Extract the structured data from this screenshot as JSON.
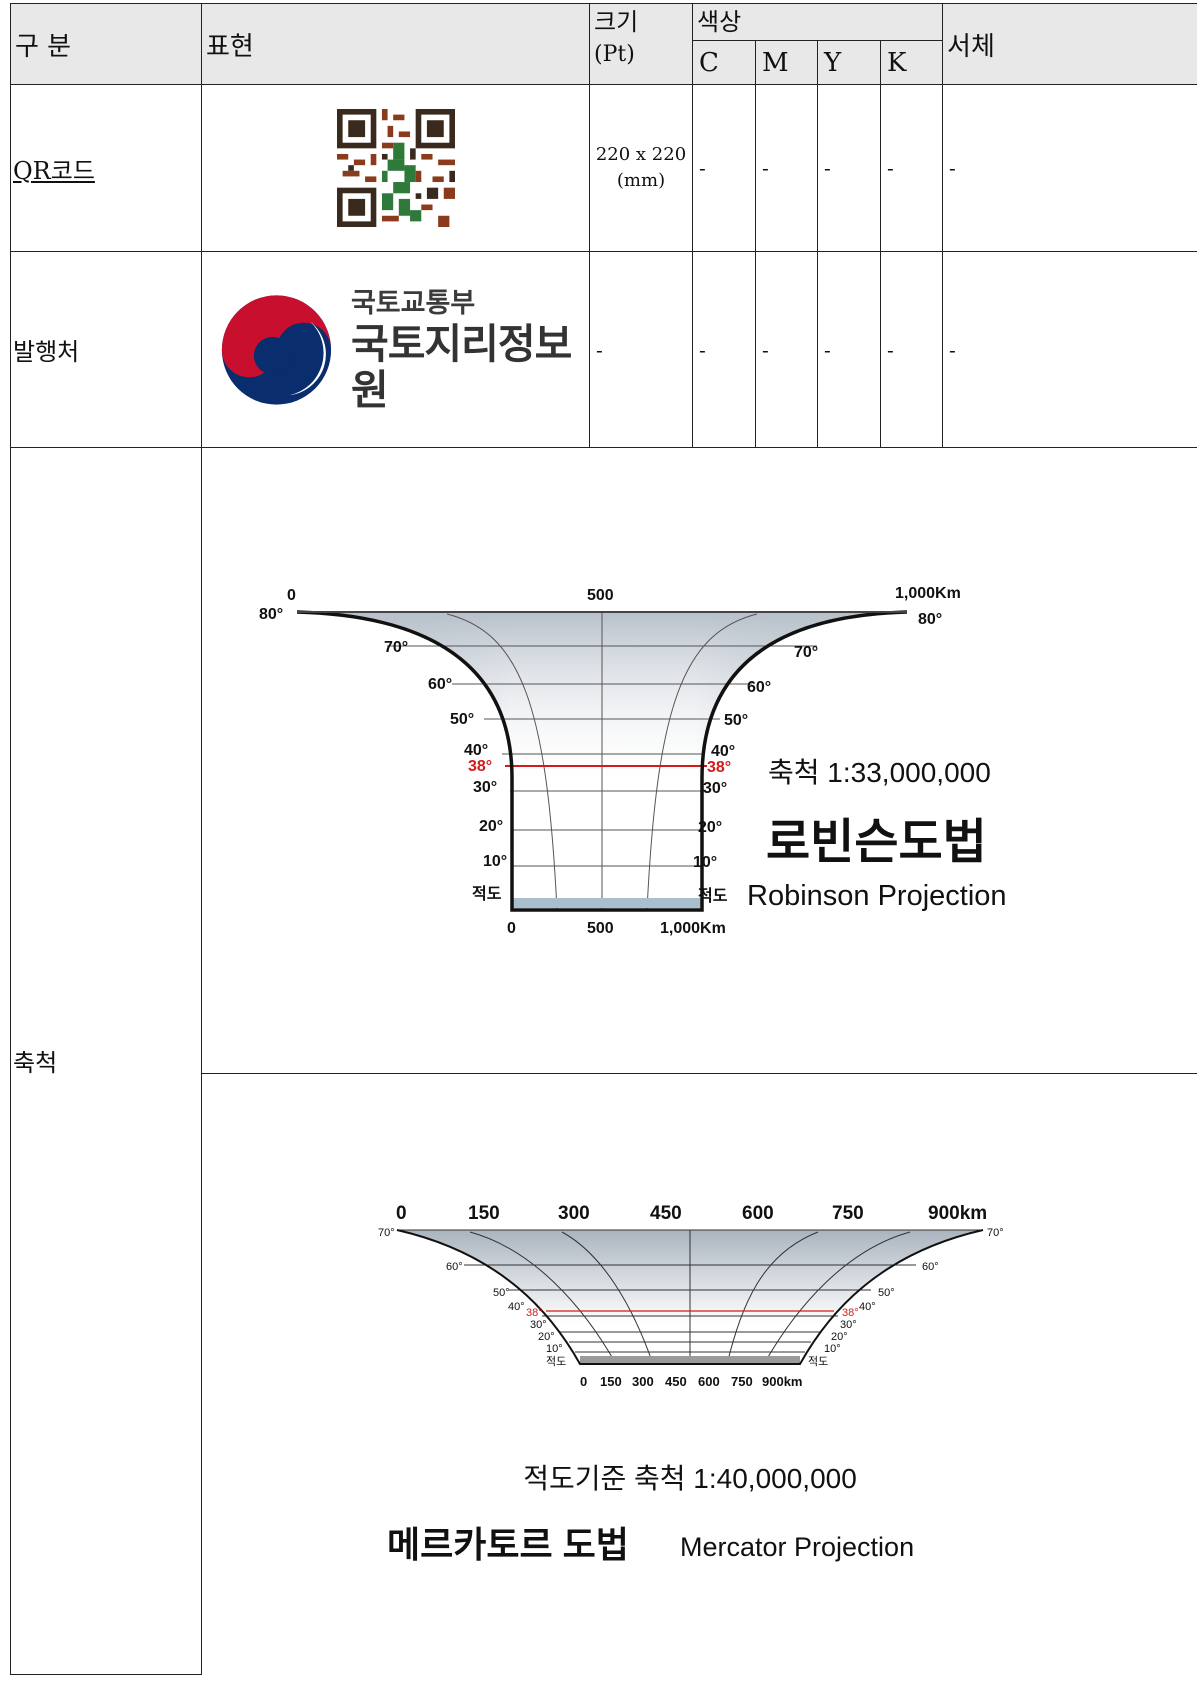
{
  "header": {
    "category": "구 분",
    "expression": "표현",
    "size_label": "크기",
    "size_unit": "(Pt)",
    "color": "색상",
    "c": "C",
    "m": "M",
    "y": "Y",
    "k": "K",
    "font": "서체"
  },
  "rows": {
    "qr": {
      "label": "QR코드",
      "size_line1": "220 x 220",
      "size_line2": "(mm)",
      "c": "-",
      "m": "-",
      "y": "-",
      "k": "-",
      "font": "-"
    },
    "publisher": {
      "label": "발행처",
      "logo_sub": "국토교통부",
      "logo_main": "국토지리정보원",
      "size": "-",
      "c": "-",
      "m": "-",
      "y": "-",
      "k": "-",
      "font": "-"
    },
    "scale": {
      "label": "축척"
    }
  },
  "robinson": {
    "scale_text": "축척 1:33,000,000",
    "title_ko": "로빈슨도법",
    "title_en": "Robinson Projection",
    "top_ticks": [
      "0",
      "500",
      "1,000Km"
    ],
    "bottom_ticks": [
      "0",
      "500",
      "1,000Km"
    ],
    "lat_left": [
      "80°",
      "70°",
      "60°",
      "50°",
      "40°",
      "38°",
      "30°",
      "20°",
      "10°",
      "적도"
    ],
    "lat_right": [
      "80°",
      "70°",
      "60°",
      "50°",
      "40°",
      "38°",
      "30°",
      "20°",
      "10°",
      "적도"
    ]
  },
  "mercator": {
    "scale_text": "적도기준 축척 1:40,000,000",
    "title_ko": "메르카토르 도법",
    "title_en": "Mercator Projection",
    "top_ticks": [
      "0",
      "150",
      "300",
      "450",
      "600",
      "750",
      "900km"
    ],
    "bottom_ticks": [
      "0",
      "150",
      "300",
      "450",
      "600",
      "750",
      "900km"
    ],
    "lat_left": [
      "70°",
      "60°",
      "50°",
      "40°",
      "38°",
      "30°",
      "20°",
      "10°",
      "적도"
    ],
    "lat_right": [
      "70°",
      "60°",
      "50°",
      "40°",
      "38°",
      "30°",
      "20°",
      "10°",
      "적도"
    ]
  },
  "colors": {
    "header_bg": "#e8e8e8",
    "red_line": "#cc1f1f",
    "navy": "#0a2d6e",
    "logo_red": "#c8102e"
  }
}
